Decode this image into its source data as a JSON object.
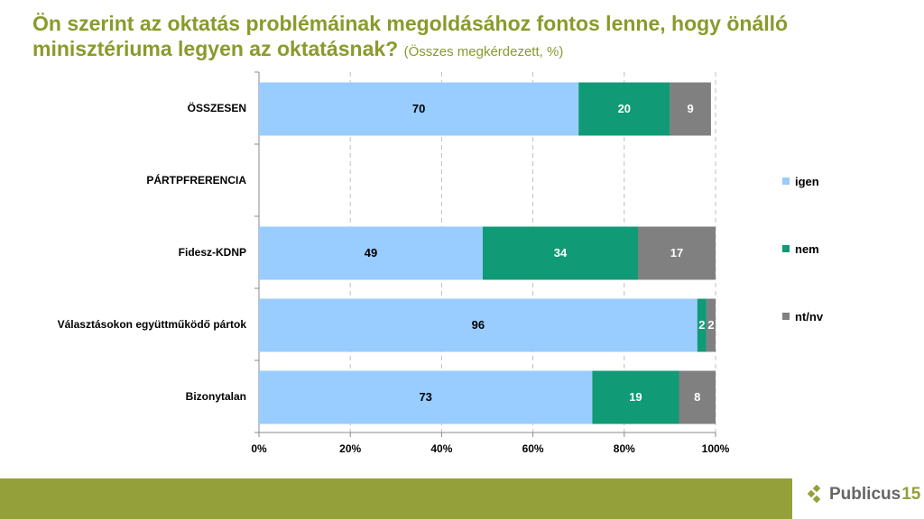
{
  "title": {
    "main": "Ön szerint az oktatás problémáinak megoldásához fontos lenne, hogy önálló minisztériuma legyen az oktatásnak?",
    "sub": "(Összes megkérdezett, %)"
  },
  "chart_data": {
    "type": "bar",
    "orientation": "horizontal",
    "stacked": "percent",
    "title": "Ön szerint az oktatás problémáinak megoldásához fontos lenne, hogy önálló minisztériuma legyen az oktatásnak?",
    "subtitle": "(Összes megkérdezett, %)",
    "categories": [
      "ÖSSZESEN",
      "PÁRTPFRERENCIA",
      "Fidesz-KDNP",
      "Választásokon együttműködő pártok",
      "Bizonytalan"
    ],
    "series": [
      {
        "name": "igen",
        "color": "#99ccff",
        "label_color": "#000000",
        "values": [
          70,
          null,
          49,
          96,
          73
        ]
      },
      {
        "name": "nem",
        "color": "#109a76",
        "label_color": "#ffffff",
        "values": [
          20,
          null,
          34,
          2,
          19
        ]
      },
      {
        "name": "nt/nv",
        "color": "#808080",
        "label_color": "#ffffff",
        "values": [
          9,
          null,
          17,
          2,
          8
        ]
      }
    ],
    "xlim": [
      0,
      100
    ],
    "xticks": [
      "0%",
      "20%",
      "40%",
      "60%",
      "80%",
      "100%"
    ],
    "grid": "vertical dashed",
    "legend": "right"
  },
  "branding": {
    "word": "Publicus",
    "number": "15"
  }
}
